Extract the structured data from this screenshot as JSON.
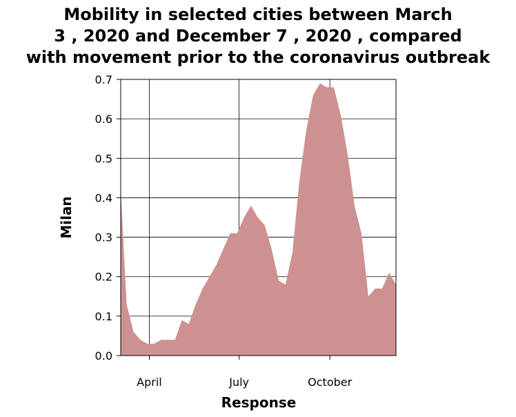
{
  "title_lines": [
    "Mobility in selected cities between March",
    "3 , 2020 and December 7 , 2020 , compared",
    "with movement prior to the coronavirus outbreak"
  ],
  "chart_data": {
    "type": "area",
    "title": "Mobility in selected cities between March 3 , 2020 and December 7 , 2020 , compared with movement prior to the coronavirus outbreak",
    "xlabel": "Response",
    "ylabel": "Milan",
    "x_ticks": [
      {
        "label": "April",
        "date": "2020-04-01"
      },
      {
        "label": "July",
        "date": "2020-07-01"
      },
      {
        "label": "October",
        "date": "2020-10-01"
      }
    ],
    "x_range": [
      "2020-03-03",
      "2020-12-07"
    ],
    "ylim": [
      0,
      0.7
    ],
    "y_ticks": [
      "0.0",
      "0.1",
      "0.2",
      "0.3",
      "0.4",
      "0.5",
      "0.6",
      "0.7"
    ],
    "grid": true,
    "color": "#cd9191",
    "series": [
      {
        "x": [
          "2020-03-03",
          "2020-03-09",
          "2020-03-16",
          "2020-03-23",
          "2020-03-30",
          "2020-04-06",
          "2020-04-13",
          "2020-04-20",
          "2020-04-27",
          "2020-05-04",
          "2020-05-11",
          "2020-05-18",
          "2020-05-25",
          "2020-06-01",
          "2020-06-08",
          "2020-06-15",
          "2020-06-22",
          "2020-06-29",
          "2020-07-06",
          "2020-07-13",
          "2020-07-20",
          "2020-07-27",
          "2020-08-03",
          "2020-08-10",
          "2020-08-17",
          "2020-08-24",
          "2020-08-31",
          "2020-09-07",
          "2020-09-14",
          "2020-09-21",
          "2020-09-28",
          "2020-10-05",
          "2020-10-12",
          "2020-10-19",
          "2020-10-26",
          "2020-11-02",
          "2020-11-09",
          "2020-11-16",
          "2020-11-23",
          "2020-11-30",
          "2020-12-07"
        ],
        "values": [
          0.42,
          0.13,
          0.06,
          0.04,
          0.03,
          0.03,
          0.04,
          0.04,
          0.04,
          0.09,
          0.08,
          0.13,
          0.17,
          0.2,
          0.23,
          0.27,
          0.31,
          0.31,
          0.35,
          0.38,
          0.35,
          0.33,
          0.27,
          0.19,
          0.18,
          0.26,
          0.44,
          0.57,
          0.66,
          0.69,
          0.68,
          0.68,
          0.61,
          0.51,
          0.38,
          0.31,
          0.15,
          0.17,
          0.17,
          0.21,
          0.18
        ]
      }
    ]
  }
}
